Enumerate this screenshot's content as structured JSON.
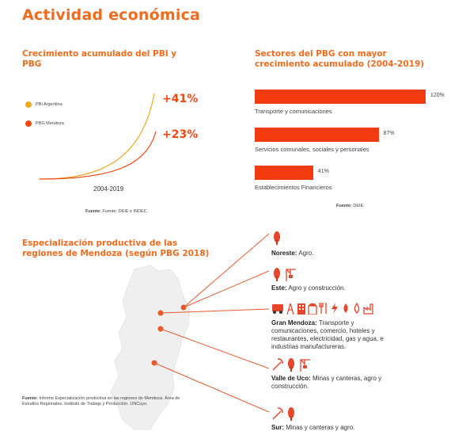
{
  "page": {
    "title": "Actividad económica"
  },
  "chart_data": [
    {
      "type": "line",
      "title": "Crecimiento acumulado del PBI y PBG",
      "xlabel": "2004-2019",
      "series": [
        {
          "name": "PBI Argentina",
          "color": "#f0a820",
          "end_label": "+41%",
          "value": 41
        },
        {
          "name": "PBG Mendoza",
          "color": "#f04a14",
          "end_label": "+23%",
          "value": 23
        }
      ],
      "source": "Fuente: DEIE e INDEC.",
      "source_label": "Fuente:",
      "source_text": "Fuente: DEIE e INDEC."
    },
    {
      "type": "bar",
      "title": "Sectores del PBG con mayor crecimiento acumulado (2004-2019)",
      "categories": [
        "Transporte y comunicaciones",
        "Servicios comunales, sociales y personales",
        "Establecimientos Financieros"
      ],
      "values": [
        120,
        87,
        41
      ],
      "value_labels": [
        "120%",
        "87%",
        "41%"
      ],
      "source_label": "Fuente:",
      "source_text": "DEIE."
    }
  ],
  "map": {
    "title": "Especialización productiva de las regiones de Mendoza (según PBG 2018)",
    "regions": [
      {
        "name": "Noreste:",
        "desc": " Agro."
      },
      {
        "name": "Este:",
        "desc": " Agro y construcción."
      },
      {
        "name": "Gran Mendoza:",
        "desc": " Transporte y comunicaciones, comercio, hoteles y restaurantes, electricidad, gas y agua, e industrias manufactureras."
      },
      {
        "name": "Valle de Uco:",
        "desc": " Minas y canteras, agro y construcción."
      },
      {
        "name": "Sur:",
        "desc": " Minas y canteras y agro."
      }
    ],
    "source_label": "Fuente:",
    "source_text": " Informe Especialización productiva en las regiones de Mendoza. Área de Estudios Regionales. Instituto de Trabajo y Producción. UNCuyo.",
    "line_color": "#e85a2a",
    "map_color": "#eeeeee"
  }
}
